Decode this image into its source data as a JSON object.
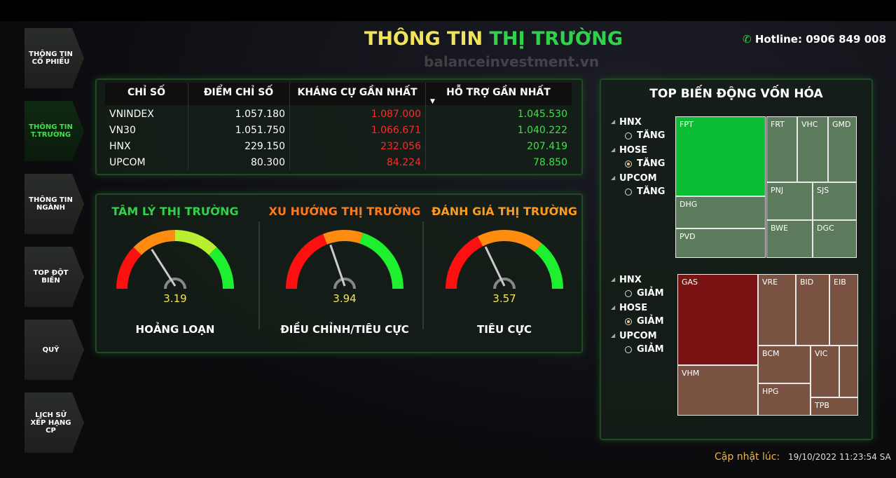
{
  "sidebar": {
    "items": [
      "THÔNG TIN CỔ PHIẾU",
      "THÔNG TIN T.TRƯỜNG",
      "THÔNG TIN NGÀNH",
      "TOP ĐỘT BIẾN",
      "QUỸ",
      "LỊCH SỬ XẾP HẠNG CP"
    ],
    "active": 1
  },
  "header": {
    "title_part1": "THÔNG TIN",
    "title_part2": "THỊ TRƯỜNG",
    "watermark": "balanceinvestment.vn",
    "hotline": "Hotline: 0906 849 008"
  },
  "table": {
    "columns": [
      "CHỈ SỐ",
      "ĐIỂM CHỈ SỐ",
      "KHÁNG CỰ GẦN NHẤT",
      "HỖ TRỢ GẦN NHẤT"
    ],
    "rows": [
      [
        "VNINDEX",
        "1.057.180",
        "1.087.000",
        "1.045.530"
      ],
      [
        "VN30",
        "1.051.750",
        "1.066.671",
        "1.040.222"
      ],
      [
        "HNX",
        "229.150",
        "232.056",
        "207.419"
      ],
      [
        "UPCOM",
        "80.300",
        "84.224",
        "78.850"
      ]
    ]
  },
  "gauges": {
    "scale": [
      0,
      10
    ],
    "items": [
      {
        "title": "TÂM LÝ THỊ TRƯỜNG",
        "value": 3.19,
        "label": "HOẢNG LOẠN"
      },
      {
        "title": "XU HƯỚNG THỊ TRƯỜNG",
        "value": 3.94,
        "label": "ĐIỀU CHỈNH/TIÊU CỰC"
      },
      {
        "title": "ĐÁNH GIÁ THỊ TRƯỜNG",
        "value": 3.57,
        "label": "TIÊU CỰC"
      }
    ]
  },
  "top_market_cap": {
    "title": "TOP BIẾN ĐỘNG VỐN HÓA",
    "increase": {
      "options": [
        {
          "exchange": "HNX",
          "direction": "TĂNG"
        },
        {
          "exchange": "HOSE",
          "direction": "TĂNG"
        },
        {
          "exchange": "UPCOM",
          "direction": "TĂNG"
        }
      ],
      "selected": 1,
      "tiles": [
        "FPT",
        "FRT",
        "VHC",
        "GMD",
        "DHG",
        "PVD",
        "PNJ",
        "SJS",
        "BWE",
        "DGC"
      ]
    },
    "decrease": {
      "options": [
        {
          "exchange": "HNX",
          "direction": "GIẢM"
        },
        {
          "exchange": "HOSE",
          "direction": "GIẢM"
        },
        {
          "exchange": "UPCOM",
          "direction": "GIẢM"
        }
      ],
      "selected": 1,
      "tiles": [
        "GAS",
        "VRE",
        "BID",
        "EIB",
        "VHM",
        "BCM",
        "HPG",
        "VIC",
        "TPB"
      ]
    }
  },
  "footer": {
    "label": "Cập nhật lúc:",
    "timestamp": "19/10/2022 11:23:54 SA"
  }
}
